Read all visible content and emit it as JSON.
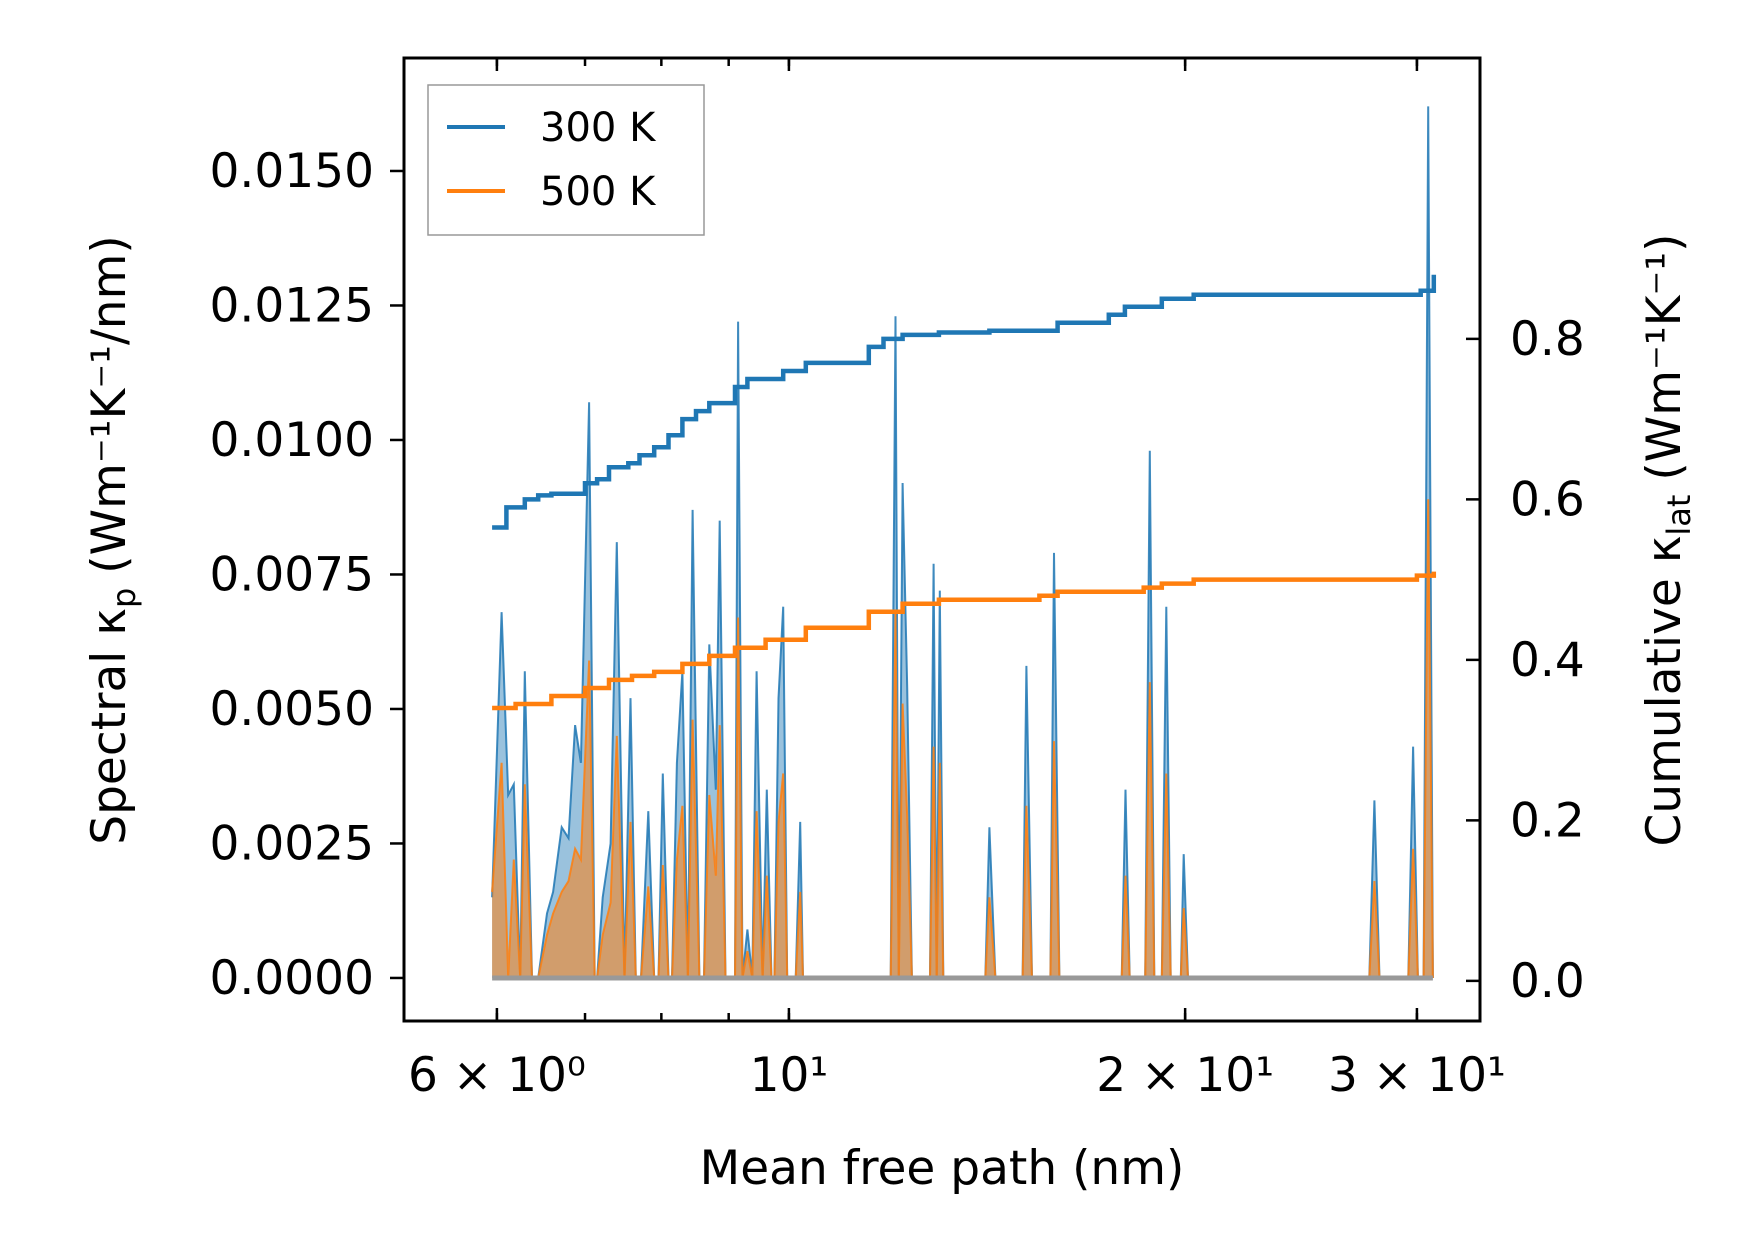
{
  "chart_data": {
    "type": "line",
    "xscale": "log",
    "xlabel": "Mean free path (nm)",
    "ylabel_left": "Spectral κ",
    "ylabel_left_sub": "p",
    "ylabel_left_unit": "(Wm⁻¹K⁻¹/nm)",
    "ylabel_right": "Cumulative κ",
    "ylabel_right_sub": "lat",
    "ylabel_right_unit": "(Wm⁻¹K⁻¹)",
    "xlim": [
      5.1,
      33.5
    ],
    "ylim_left": [
      -0.0008,
      0.0171
    ],
    "ylim_right": [
      -0.05,
      1.15
    ],
    "x_ticks": [
      {
        "value": 6,
        "label": "6 × 10⁰"
      },
      {
        "value": 10,
        "label": "10¹"
      },
      {
        "value": 20,
        "label": "2 × 10¹"
      },
      {
        "value": 30,
        "label": "3 × 10¹"
      }
    ],
    "left_ticks": [
      {
        "value": 0.0,
        "label": "0.0000"
      },
      {
        "value": 0.0025,
        "label": "0.0025"
      },
      {
        "value": 0.005,
        "label": "0.0050"
      },
      {
        "value": 0.0075,
        "label": "0.0075"
      },
      {
        "value": 0.01,
        "label": "0.0100"
      },
      {
        "value": 0.0125,
        "label": "0.0125"
      },
      {
        "value": 0.015,
        "label": "0.0150"
      }
    ],
    "right_ticks": [
      {
        "value": 0.0,
        "label": "0.0"
      },
      {
        "value": 0.2,
        "label": "0.2"
      },
      {
        "value": 0.4,
        "label": "0.4"
      },
      {
        "value": 0.6,
        "label": "0.6"
      },
      {
        "value": 0.8,
        "label": "0.8"
      }
    ],
    "legend": {
      "position": "top-left",
      "entries": [
        {
          "label": "300 K",
          "color": "#1f77b4"
        },
        {
          "label": "500 K",
          "color": "#ff7f0e"
        }
      ]
    },
    "spectral": {
      "x": [
        5.95,
        6.05,
        6.12,
        6.18,
        6.25,
        6.3,
        6.38,
        6.45,
        6.55,
        6.62,
        6.72,
        6.8,
        6.88,
        6.95,
        7.05,
        7.12,
        7.15,
        7.22,
        7.32,
        7.4,
        7.5,
        7.58,
        7.65,
        7.72,
        7.82,
        7.9,
        7.96,
        8.02,
        8.1,
        8.15,
        8.22,
        8.3,
        8.38,
        8.45,
        8.55,
        8.62,
        8.7,
        8.8,
        8.86,
        8.95,
        9.02,
        9.1,
        9.15,
        9.22,
        9.3,
        9.38,
        9.45,
        9.55,
        9.62,
        9.7,
        9.75,
        9.82,
        9.9,
        9.97,
        10.05,
        10.12,
        10.2,
        10.25,
        10.32,
        10.4,
        10.5,
        10.6,
        10.65,
        10.72,
        10.8,
        11.95,
        12.05,
        12.12,
        12.2,
        12.3,
        12.4,
        12.8,
        12.88,
        12.95,
        13.02,
        13.1,
        13.2,
        14.1,
        14.2,
        14.35,
        15.05,
        15.15,
        15.3,
        15.8,
        15.9,
        16.05,
        17.9,
        18.02,
        18.15,
        18.65,
        18.8,
        18.95,
        19.2,
        19.35,
        19.5,
        19.85,
        19.95,
        20.1,
        27.6,
        27.85,
        28.1,
        29.55,
        29.8,
        30.05,
        30.35,
        30.6,
        30.85
      ],
      "series": [
        {
          "name": "300 K",
          "color": "#1f77b4",
          "values": [
            0.0015,
            0.0068,
            0.0034,
            0.0036,
            0.0,
            0.0057,
            0.0,
            0.0,
            0.0012,
            0.0016,
            0.0028,
            0.0026,
            0.0047,
            0.004,
            0.0107,
            0.0,
            0.0,
            0.0015,
            0.0025,
            0.0081,
            0.0,
            0.0052,
            0.0,
            0.0,
            0.0031,
            0.0,
            0.0,
            0.0038,
            0.0,
            0.0,
            0.004,
            0.0057,
            0.0,
            0.0087,
            0.0,
            0.0,
            0.0062,
            0.0035,
            0.0085,
            0.0,
            0.0,
            0.0,
            0.0122,
            0.0,
            0.0009,
            0.0,
            0.0057,
            0.0,
            0.0035,
            0.0,
            0.0,
            0.0052,
            0.0069,
            0.0,
            0.0,
            0.0,
            0.0029,
            0.0,
            0.0,
            0.0,
            0.0,
            0.0,
            0.0,
            0.0,
            0.0,
            0.0,
            0.0123,
            0.0,
            0.0092,
            0.0054,
            0.0,
            0.0,
            0.0077,
            0.0,
            0.0072,
            0.0,
            0.0,
            0.0,
            0.0028,
            0.0,
            0.0,
            0.0058,
            0.0,
            0.0,
            0.0079,
            0.0,
            0.0,
            0.0035,
            0.0,
            0.0,
            0.0098,
            0.0,
            0.0,
            0.0069,
            0.0,
            0.0,
            0.0023,
            0.0,
            0.0,
            0.0033,
            0.0,
            0.0,
            0.0043,
            0.0,
            0.0,
            0.0162,
            0.0
          ]
        },
        {
          "name": "500 K",
          "color": "#ff7f0e",
          "values": [
            0.0016,
            0.004,
            0.0,
            0.0022,
            0.0,
            0.0036,
            0.0,
            0.0,
            0.0008,
            0.0012,
            0.0016,
            0.0018,
            0.0024,
            0.0022,
            0.0059,
            0.0,
            0.0,
            0.0008,
            0.0014,
            0.0045,
            0.0,
            0.0029,
            0.0,
            0.0,
            0.0017,
            0.0,
            0.0,
            0.0021,
            0.0,
            0.0,
            0.0022,
            0.0032,
            0.0,
            0.0048,
            0.0,
            0.0,
            0.0034,
            0.0019,
            0.0047,
            0.0,
            0.0,
            0.0,
            0.0067,
            0.0,
            0.0005,
            0.0,
            0.0031,
            0.0,
            0.0019,
            0.0,
            0.0,
            0.0029,
            0.0038,
            0.0,
            0.0,
            0.0,
            0.0016,
            0.0,
            0.0,
            0.0,
            0.0,
            0.0,
            0.0,
            0.0,
            0.0,
            0.0,
            0.0068,
            0.0,
            0.0051,
            0.003,
            0.0,
            0.0,
            0.0043,
            0.0,
            0.004,
            0.0,
            0.0,
            0.0,
            0.0015,
            0.0,
            0.0,
            0.0032,
            0.0,
            0.0,
            0.0044,
            0.0,
            0.0,
            0.0019,
            0.0,
            0.0,
            0.0055,
            0.0,
            0.0,
            0.0038,
            0.0,
            0.0,
            0.0013,
            0.0,
            0.0,
            0.0018,
            0.0,
            0.0,
            0.0024,
            0.0,
            0.0,
            0.0089,
            0.0
          ]
        }
      ]
    },
    "cumulative": {
      "series": [
        {
          "name": "300 K",
          "color": "#1f77b4",
          "x": [
            5.95,
            6.1,
            6.3,
            6.45,
            6.6,
            7.0,
            7.15,
            7.3,
            7.55,
            7.7,
            7.9,
            8.1,
            8.3,
            8.5,
            8.7,
            8.9,
            9.1,
            9.3,
            9.6,
            9.9,
            10.3,
            11.2,
            11.5,
            11.8,
            12.2,
            13.0,
            14.2,
            15.5,
            16.0,
            17.5,
            18.0,
            18.6,
            19.2,
            20.3,
            29.5,
            30.2,
            30.9
          ],
          "y": [
            0.565,
            0.59,
            0.6,
            0.605,
            0.607,
            0.62,
            0.625,
            0.64,
            0.645,
            0.655,
            0.665,
            0.68,
            0.7,
            0.71,
            0.72,
            0.72,
            0.74,
            0.75,
            0.75,
            0.76,
            0.77,
            0.77,
            0.79,
            0.8,
            0.805,
            0.808,
            0.81,
            0.81,
            0.82,
            0.83,
            0.84,
            0.84,
            0.85,
            0.855,
            0.855,
            0.86,
            0.88
          ]
        },
        {
          "name": "500 K",
          "color": "#ff7f0e",
          "x": [
            5.95,
            6.2,
            6.6,
            7.0,
            7.3,
            7.6,
            7.9,
            8.3,
            8.7,
            9.1,
            9.6,
            10.3,
            11.2,
            11.5,
            12.2,
            13.0,
            14.2,
            15.5,
            16.0,
            17.5,
            18.6,
            19.2,
            20.3,
            28.0,
            30.0,
            30.9
          ],
          "y": [
            0.34,
            0.345,
            0.355,
            0.365,
            0.375,
            0.38,
            0.385,
            0.395,
            0.405,
            0.415,
            0.425,
            0.44,
            0.44,
            0.46,
            0.47,
            0.475,
            0.475,
            0.48,
            0.485,
            0.485,
            0.49,
            0.495,
            0.5,
            0.5,
            0.505,
            0.51
          ]
        }
      ]
    }
  }
}
